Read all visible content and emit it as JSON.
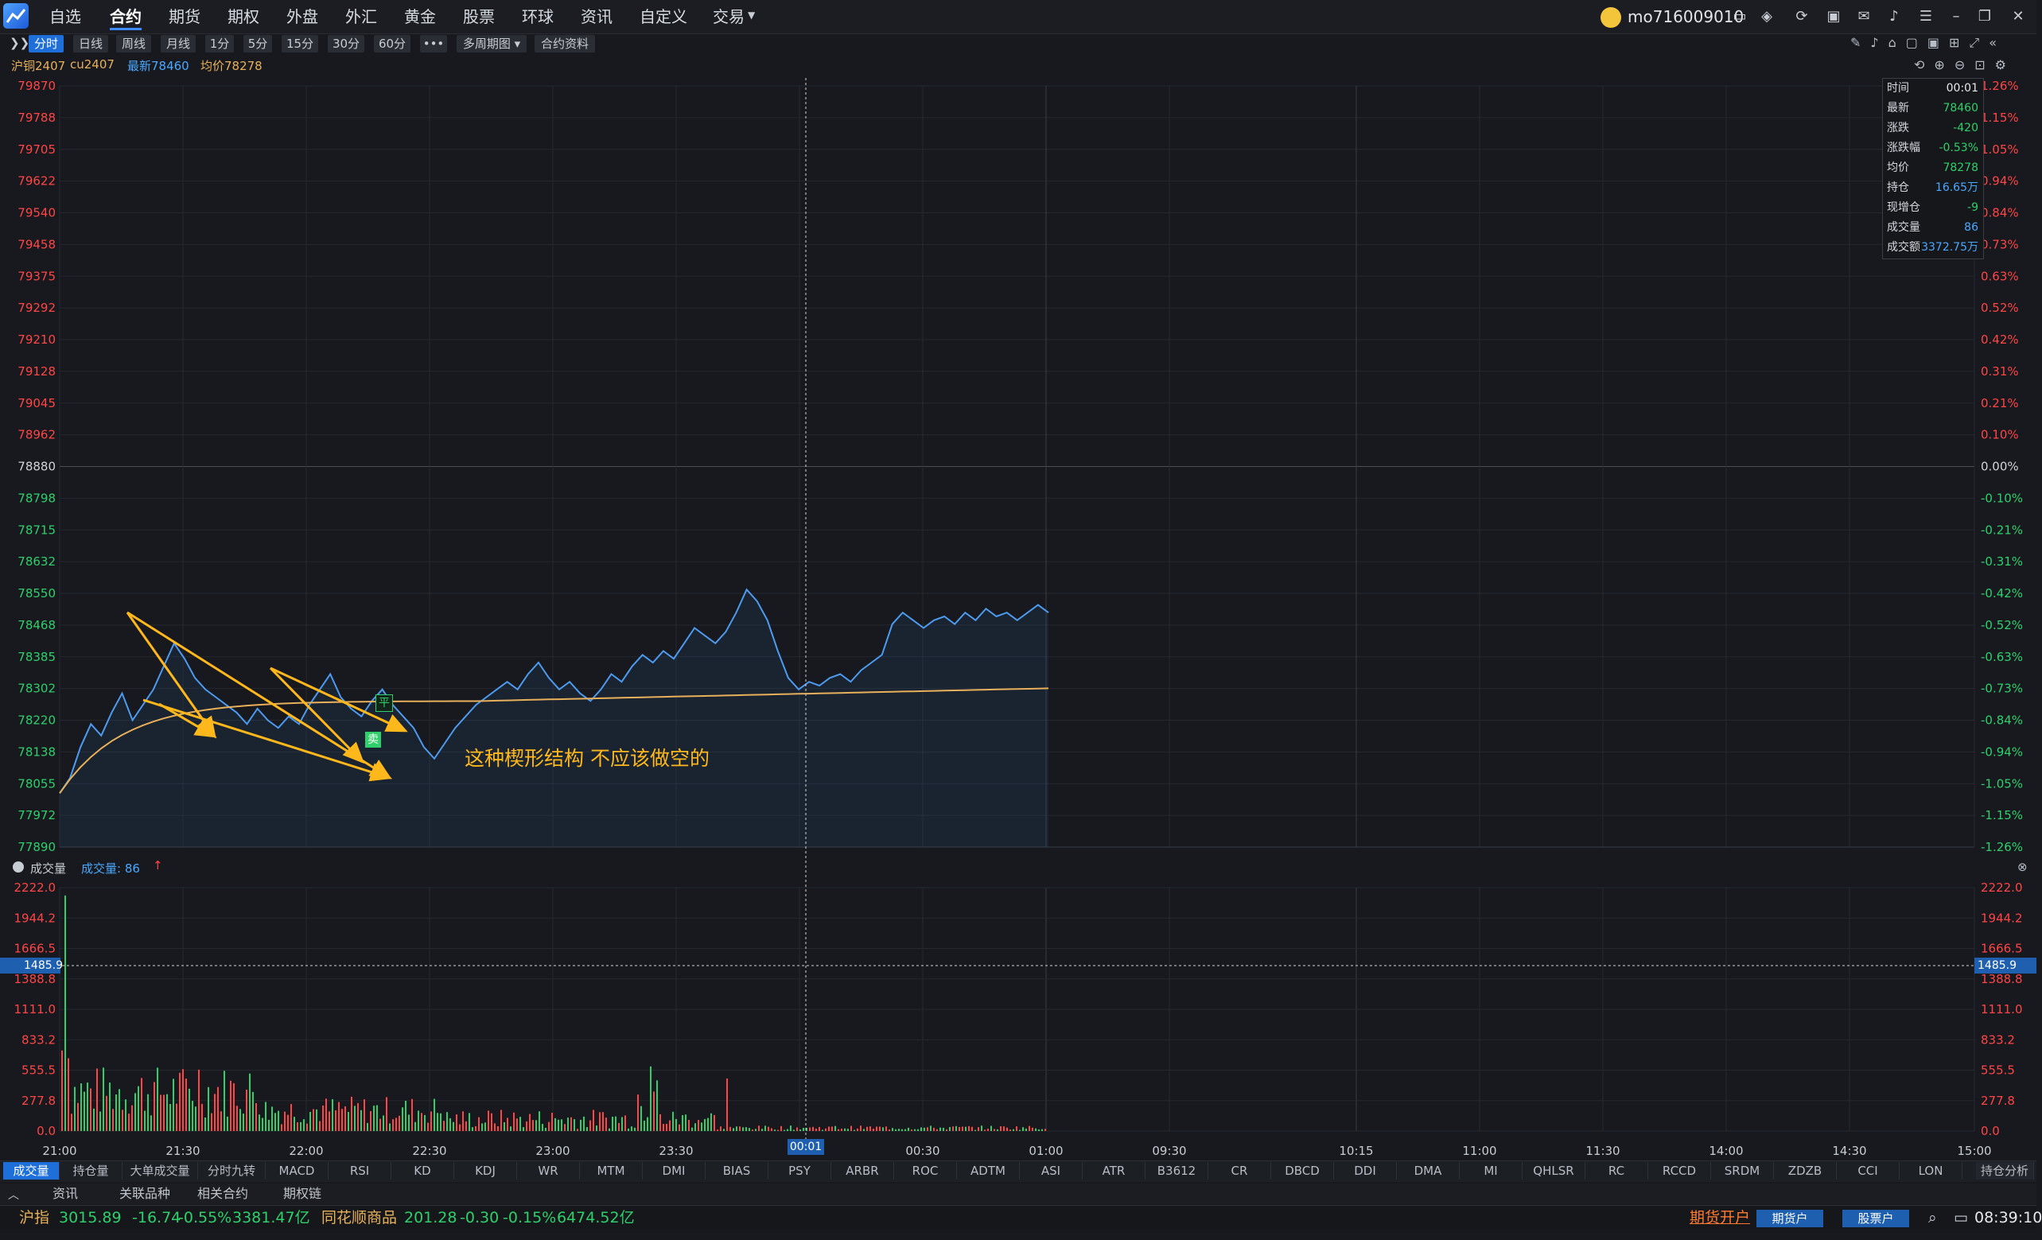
{
  "menu": {
    "items": [
      "自选",
      "合约",
      "期货",
      "期权",
      "外盘",
      "外汇",
      "黄金",
      "股票",
      "环球",
      "资讯",
      "自定义",
      "交易"
    ],
    "active": "合约",
    "user": "mo716009010"
  },
  "toolbar": {
    "buttons": [
      "分时",
      "日线",
      "周线",
      "月线",
      "1分",
      "5分",
      "15分",
      "30分",
      "60分",
      "•••",
      "多周期图 ▾",
      "合约资料"
    ],
    "active": "分时"
  },
  "quote": {
    "name": "沪铜2407",
    "code": "cu2407",
    "latest_label": "最新78460",
    "avg_label": "均价78278"
  },
  "price_axis": {
    "left": [
      "79870",
      "79788",
      "79705",
      "79622",
      "79540",
      "79458",
      "79375",
      "79292",
      "79210",
      "79128",
      "79045",
      "78962",
      "78880",
      "78798",
      "78715",
      "78632",
      "78550",
      "78468",
      "78385",
      "78302",
      "78220",
      "78138",
      "78055",
      "77972",
      "77890"
    ],
    "right": [
      "1.26%",
      "1.15%",
      "1.05%",
      "0.94%",
      "0.84%",
      "0.73%",
      "0.63%",
      "0.52%",
      "0.42%",
      "0.31%",
      "0.21%",
      "0.10%",
      "0.00%",
      "-0.10%",
      "-0.21%",
      "-0.31%",
      "-0.42%",
      "-0.52%",
      "-0.63%",
      "-0.73%",
      "-0.84%",
      "-0.94%",
      "-1.05%",
      "-1.15%",
      "-1.26%"
    ]
  },
  "info_panel": [
    {
      "k": "时间",
      "v": "00:01",
      "color": "#e6e8ec"
    },
    {
      "k": "最新",
      "v": "78460",
      "color": "#2fd06b"
    },
    {
      "k": "涨跌",
      "v": "-420",
      "color": "#2fd06b"
    },
    {
      "k": "涨跌幅",
      "v": "-0.53%",
      "color": "#2fd06b"
    },
    {
      "k": "均价",
      "v": "78278",
      "color": "#2fd06b"
    },
    {
      "k": "持仓",
      "v": "16.65万",
      "color": "#4aa8ff"
    },
    {
      "k": "现增仓",
      "v": "-9",
      "color": "#2fd06b"
    },
    {
      "k": "成交量",
      "v": "86",
      "color": "#4aa8ff"
    },
    {
      "k": "成交额",
      "v": "3372.75万",
      "color": "#4aa8ff"
    }
  ],
  "annotation": "这种楔形结构 不应该做空的",
  "markers": {
    "open": "平",
    "sell": "卖"
  },
  "volume": {
    "header_label": "成交量",
    "value_label": "成交量: 86",
    "axis": [
      "2222.0",
      "1944.2",
      "1666.5",
      "1388.8",
      "1111.0",
      "833.2",
      "555.5",
      "277.8",
      "0.0"
    ],
    "crosshair_value": "1485.9"
  },
  "time_axis": [
    "21:00",
    "21:30",
    "22:00",
    "22:30",
    "23:00",
    "23:30",
    "00:01",
    "00:30",
    "01:00",
    "09:30",
    "10:15",
    "11:00",
    "11:30",
    "14:00",
    "14:30",
    "15:00"
  ],
  "indicators": [
    "成交量",
    "持仓量",
    "大单成交量",
    "分时九转",
    "MACD",
    "RSI",
    "KD",
    "KDJ",
    "WR",
    "MTM",
    "DMI",
    "BIAS",
    "PSY",
    "ARBR",
    "ROC",
    "ADTM",
    "ASI",
    "ATR",
    "B3612",
    "CR",
    "DBCD",
    "DDI",
    "DMA",
    "MI",
    "QHLSR",
    "RC",
    "RCCD",
    "SRDM",
    "ZDZB",
    "CCI",
    "LON"
  ],
  "indicator_active": "成交量",
  "indicator_right": "持仓分析",
  "subtabs": [
    "资讯",
    "关联品种",
    "相关合约",
    "期权链"
  ],
  "status": {
    "index1_name": "沪指",
    "index1_val": "3015.89",
    "index1_chg": "-16.74",
    "index1_pct": "-0.55%",
    "index1_amt": "3381.47亿",
    "index2_name": "同花顺商品",
    "index2_val": "201.28",
    "index2_chg": "-0.30",
    "index2_pct": "-0.15%",
    "index2_amt": "6474.52亿",
    "open_futures": "期货开户",
    "btn1": "期货户",
    "btn2": "股票户",
    "clock": "08:39:10"
  },
  "colors": {
    "up": "#ff4545",
    "down": "#2fd06b",
    "accent": "#1e6fd9",
    "price_line": "#4d9bef",
    "avg_line": "#e8b05a",
    "annotation": "#ffb81c"
  }
}
